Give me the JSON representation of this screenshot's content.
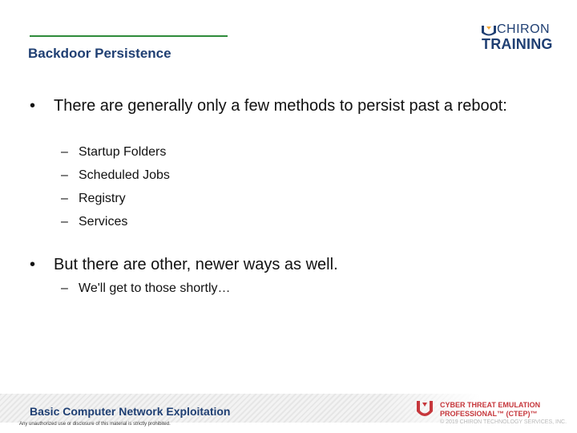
{
  "slide": {
    "title": "Backdoor Persistence",
    "logo": {
      "top": "CHIRON",
      "bottom": "TRAINING"
    }
  },
  "content": {
    "bullets": [
      {
        "text": "There are generally only a few methods to persist past a reboot:",
        "subitems": [
          "Startup Folders",
          "Scheduled Jobs",
          "Registry",
          "Services"
        ]
      },
      {
        "text": "But there are other, newer ways as well.",
        "subitems": [
          "We'll get to those shortly…"
        ]
      }
    ]
  },
  "footer": {
    "course_title": "Basic Computer Network Exploitation",
    "disclaimer": "Any unauthorized use or disclosure of this material is strictly prohibited.",
    "ctep_line1": "CYBER THREAT EMULATION",
    "ctep_line2": "PROFESSIONAL™ (CTEP)™",
    "copyright": "© 2019 CHIRON TECHNOLOGY SERVICES, INC."
  },
  "colors": {
    "title_blue": "#1f3f73",
    "rule_green": "#2e8b3a",
    "ctep_red": "#c6373c"
  }
}
